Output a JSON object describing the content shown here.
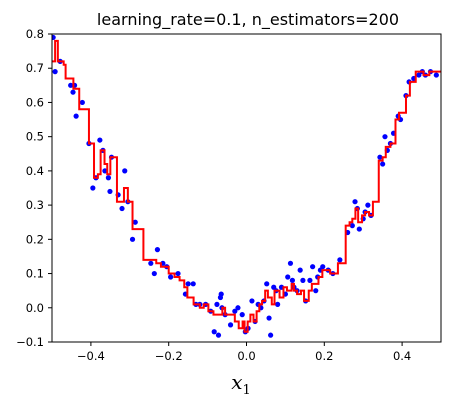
{
  "chart_data": {
    "type": "scatter",
    "title": "learning_rate=0.1, n_estimators=200",
    "xlabel": "x",
    "xlabel_subscript": "1",
    "ylabel": "",
    "xlim": [
      -0.5,
      0.5
    ],
    "ylim": [
      -0.1,
      0.8
    ],
    "xticks": [
      -0.4,
      -0.2,
      0.0,
      0.2,
      0.4
    ],
    "xtick_labels": [
      "−0.4",
      "−0.2",
      "0.0",
      "0.2",
      "0.4"
    ],
    "yticks": [
      -0.1,
      0.0,
      0.1,
      0.2,
      0.3,
      0.4,
      0.5,
      0.6,
      0.7,
      0.8
    ],
    "ytick_labels": [
      "−0.1",
      "0.0",
      "0.1",
      "0.2",
      "0.3",
      "0.4",
      "0.5",
      "0.6",
      "0.7",
      "0.8"
    ],
    "grid": false,
    "legend": "none",
    "colors": {
      "points": "#0000ff",
      "line": "#ff0000"
    },
    "points": [
      [
        -0.497,
        0.79
      ],
      [
        -0.492,
        0.69
      ],
      [
        -0.479,
        0.72
      ],
      [
        -0.452,
        0.65
      ],
      [
        -0.446,
        0.63
      ],
      [
        -0.442,
        0.65
      ],
      [
        -0.438,
        0.56
      ],
      [
        -0.422,
        0.6
      ],
      [
        -0.405,
        0.48
      ],
      [
        -0.395,
        0.35
      ],
      [
        -0.387,
        0.38
      ],
      [
        -0.377,
        0.49
      ],
      [
        -0.369,
        0.46
      ],
      [
        -0.364,
        0.4
      ],
      [
        -0.355,
        0.38
      ],
      [
        -0.351,
        0.34
      ],
      [
        -0.347,
        0.44
      ],
      [
        -0.33,
        0.33
      ],
      [
        -0.32,
        0.29
      ],
      [
        -0.313,
        0.4
      ],
      [
        -0.305,
        0.31
      ],
      [
        -0.293,
        0.2
      ],
      [
        -0.286,
        0.25
      ],
      [
        -0.246,
        0.13
      ],
      [
        -0.237,
        0.1
      ],
      [
        -0.229,
        0.17
      ],
      [
        -0.215,
        0.13
      ],
      [
        -0.205,
        0.12
      ],
      [
        -0.195,
        0.09
      ],
      [
        -0.176,
        0.1
      ],
      [
        -0.157,
        0.04
      ],
      [
        -0.15,
        0.07
      ],
      [
        -0.137,
        0.07
      ],
      [
        -0.13,
        0.01
      ],
      [
        -0.12,
        0.01
      ],
      [
        -0.105,
        0.01
      ],
      [
        -0.092,
        -0.01
      ],
      [
        -0.083,
        -0.07
      ],
      [
        -0.076,
        0.01
      ],
      [
        -0.072,
        -0.08
      ],
      [
        -0.067,
        0.03
      ],
      [
        -0.065,
        0.04
      ],
      [
        -0.063,
        0.0
      ],
      [
        -0.055,
        -0.02
      ],
      [
        -0.041,
        -0.05
      ],
      [
        -0.03,
        -0.01
      ],
      [
        -0.022,
        0.0
      ],
      [
        -0.011,
        -0.02
      ],
      [
        -0.003,
        -0.07
      ],
      [
        0.004,
        -0.06
      ],
      [
        0.014,
        0.02
      ],
      [
        0.022,
        -0.04
      ],
      [
        0.03,
        0.01
      ],
      [
        0.037,
        0.0
      ],
      [
        0.045,
        0.02
      ],
      [
        0.052,
        0.07
      ],
      [
        0.058,
        -0.03
      ],
      [
        0.062,
        -0.08
      ],
      [
        0.07,
        0.06
      ],
      [
        0.076,
        0.05
      ],
      [
        0.08,
        0.01
      ],
      [
        0.09,
        0.06
      ],
      [
        0.1,
        0.04
      ],
      [
        0.106,
        0.09
      ],
      [
        0.113,
        0.13
      ],
      [
        0.118,
        0.08
      ],
      [
        0.122,
        0.06
      ],
      [
        0.13,
        0.05
      ],
      [
        0.138,
        0.11
      ],
      [
        0.145,
        0.08
      ],
      [
        0.152,
        0.02
      ],
      [
        0.163,
        0.08
      ],
      [
        0.17,
        0.12
      ],
      [
        0.178,
        0.05
      ],
      [
        0.183,
        0.09
      ],
      [
        0.19,
        0.11
      ],
      [
        0.196,
        0.12
      ],
      [
        0.21,
        0.11
      ],
      [
        0.222,
        0.1
      ],
      [
        0.24,
        0.14
      ],
      [
        0.26,
        0.22
      ],
      [
        0.272,
        0.24
      ],
      [
        0.279,
        0.31
      ],
      [
        0.285,
        0.29
      ],
      [
        0.29,
        0.23
      ],
      [
        0.3,
        0.26
      ],
      [
        0.305,
        0.28
      ],
      [
        0.312,
        0.3
      ],
      [
        0.32,
        0.27
      ],
      [
        0.343,
        0.44
      ],
      [
        0.35,
        0.42
      ],
      [
        0.356,
        0.5
      ],
      [
        0.362,
        0.46
      ],
      [
        0.37,
        0.48
      ],
      [
        0.378,
        0.51
      ],
      [
        0.39,
        0.56
      ],
      [
        0.396,
        0.55
      ],
      [
        0.41,
        0.62
      ],
      [
        0.418,
        0.66
      ],
      [
        0.43,
        0.67
      ],
      [
        0.443,
        0.68
      ],
      [
        0.452,
        0.69
      ],
      [
        0.46,
        0.68
      ],
      [
        0.473,
        0.69
      ],
      [
        0.488,
        0.68
      ]
    ],
    "prediction": [
      [
        -0.5,
        0.72
      ],
      [
        -0.492,
        0.78
      ],
      [
        -0.485,
        0.72
      ],
      [
        -0.47,
        0.71
      ],
      [
        -0.465,
        0.67
      ],
      [
        -0.445,
        0.64
      ],
      [
        -0.43,
        0.58
      ],
      [
        -0.405,
        0.48
      ],
      [
        -0.392,
        0.38
      ],
      [
        -0.382,
        0.39
      ],
      [
        -0.375,
        0.46
      ],
      [
        -0.365,
        0.42
      ],
      [
        -0.358,
        0.39
      ],
      [
        -0.35,
        0.44
      ],
      [
        -0.333,
        0.31
      ],
      [
        -0.315,
        0.35
      ],
      [
        -0.305,
        0.31
      ],
      [
        -0.293,
        0.23
      ],
      [
        -0.265,
        0.14
      ],
      [
        -0.24,
        0.14
      ],
      [
        -0.232,
        0.13
      ],
      [
        -0.22,
        0.12
      ],
      [
        -0.2,
        0.1
      ],
      [
        -0.185,
        0.09
      ],
      [
        -0.172,
        0.08
      ],
      [
        -0.16,
        0.06
      ],
      [
        -0.152,
        0.03
      ],
      [
        -0.136,
        0.01
      ],
      [
        -0.12,
        0.0
      ],
      [
        -0.11,
        0.01
      ],
      [
        -0.098,
        -0.01
      ],
      [
        -0.085,
        -0.02
      ],
      [
        -0.068,
        -0.02
      ],
      [
        -0.062,
        0.0
      ],
      [
        -0.055,
        -0.02
      ],
      [
        -0.03,
        -0.04
      ],
      [
        -0.02,
        -0.06
      ],
      [
        -0.01,
        -0.04
      ],
      [
        -0.005,
        -0.07
      ],
      [
        0.003,
        -0.04
      ],
      [
        0.01,
        -0.02
      ],
      [
        0.018,
        -0.04
      ],
      [
        0.026,
        -0.01
      ],
      [
        0.033,
        0.01
      ],
      [
        0.04,
        0.02
      ],
      [
        0.048,
        0.05
      ],
      [
        0.055,
        0.03
      ],
      [
        0.065,
        0.01
      ],
      [
        0.072,
        0.05
      ],
      [
        0.085,
        0.03
      ],
      [
        0.095,
        0.06
      ],
      [
        0.104,
        0.05
      ],
      [
        0.116,
        0.07
      ],
      [
        0.122,
        0.05
      ],
      [
        0.13,
        0.04
      ],
      [
        0.14,
        0.05
      ],
      [
        0.148,
        0.02
      ],
      [
        0.16,
        0.05
      ],
      [
        0.168,
        0.07
      ],
      [
        0.178,
        0.07
      ],
      [
        0.185,
        0.09
      ],
      [
        0.195,
        0.11
      ],
      [
        0.215,
        0.1
      ],
      [
        0.235,
        0.13
      ],
      [
        0.255,
        0.24
      ],
      [
        0.265,
        0.25
      ],
      [
        0.272,
        0.26
      ],
      [
        0.28,
        0.29
      ],
      [
        0.287,
        0.25
      ],
      [
        0.297,
        0.27
      ],
      [
        0.305,
        0.28
      ],
      [
        0.315,
        0.27
      ],
      [
        0.325,
        0.31
      ],
      [
        0.34,
        0.43
      ],
      [
        0.35,
        0.44
      ],
      [
        0.358,
        0.47
      ],
      [
        0.37,
        0.48
      ],
      [
        0.383,
        0.55
      ],
      [
        0.392,
        0.57
      ],
      [
        0.402,
        0.57
      ],
      [
        0.41,
        0.62
      ],
      [
        0.42,
        0.66
      ],
      [
        0.435,
        0.69
      ],
      [
        0.455,
        0.68
      ],
      [
        0.47,
        0.69
      ],
      [
        0.485,
        0.69
      ],
      [
        0.5,
        0.69
      ]
    ]
  }
}
